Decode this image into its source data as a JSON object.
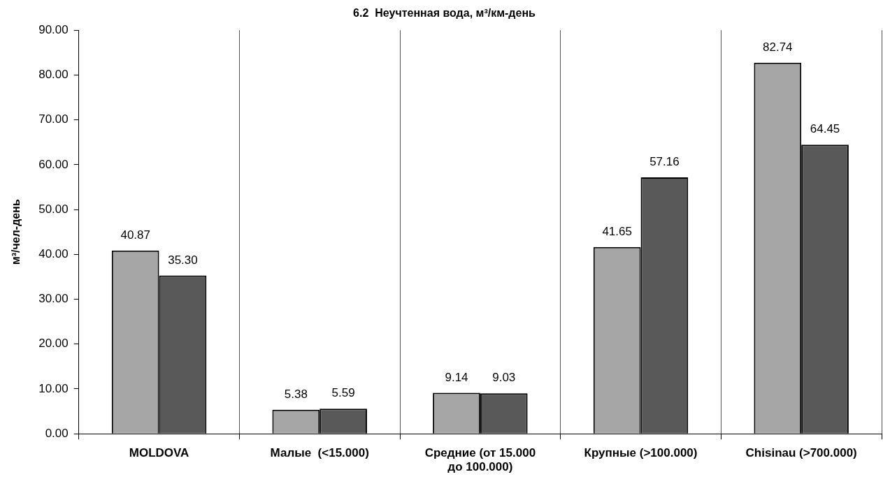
{
  "chart_data": {
    "type": "bar",
    "title": "6.2  Неучтенная вода, м³/км-день",
    "ylabel": "м³/чел-день",
    "categories": [
      "MOLDOVA",
      "Малые  (<15.000)",
      "Средние (от 15.000 до 100.000)",
      "Крупные (>100.000)",
      "Chisinau (>700.000)"
    ],
    "series": [
      {
        "color": "#a6a6a6",
        "values": [
          40.87,
          5.38,
          9.14,
          41.65,
          82.74
        ],
        "value_labels": [
          "40.87",
          "5.38",
          "9.14",
          "41.65",
          "82.74"
        ]
      },
      {
        "color": "#595959",
        "values": [
          35.3,
          5.59,
          9.03,
          57.16,
          64.45
        ],
        "value_labels": [
          "35.30",
          "5.59",
          "9.03",
          "57.16",
          "64.45"
        ]
      }
    ],
    "ylim": [
      0,
      90
    ],
    "yticks": [
      {
        "value": 0,
        "label": "0.00"
      },
      {
        "value": 10,
        "label": "10.00"
      },
      {
        "value": 20,
        "label": "20.00"
      },
      {
        "value": 30,
        "label": "30.00"
      },
      {
        "value": 40,
        "label": "40.00"
      },
      {
        "value": 50,
        "label": "50.00"
      },
      {
        "value": 60,
        "label": "60.00"
      },
      {
        "value": 70,
        "label": "70.00"
      },
      {
        "value": 80,
        "label": "80.00"
      },
      {
        "value": 90,
        "label": "90.00"
      }
    ],
    "grid": "x",
    "legend": false
  }
}
